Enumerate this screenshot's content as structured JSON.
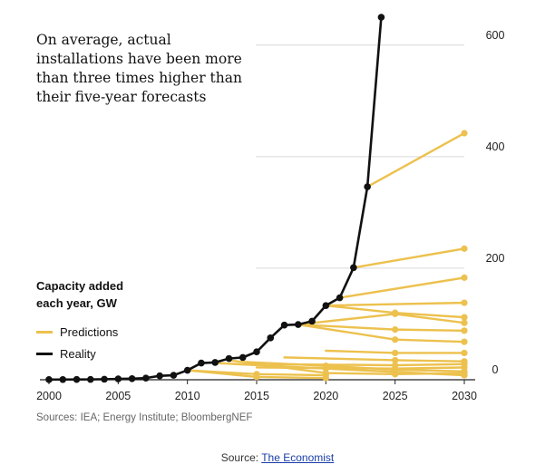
{
  "title": "On average, actual installations have been more than three times higher than their five-year forecasts",
  "unit_label": "Capacity added each year, GW",
  "legend": {
    "predictions": "Predictions",
    "reality": "Reality"
  },
  "sources": "Sources: IEA; Energy Institute; BloombergNEF",
  "credit": {
    "prefix": "Source:",
    "link_text": "The Economist"
  },
  "colors": {
    "reality": "#111111",
    "predictions": "#ecc14e",
    "grid": "#d9d9d9",
    "axis": "#222222"
  },
  "chart_data": {
    "type": "line",
    "title": "On average, actual installations have been more than three times higher than their five-year forecasts",
    "xlabel": "",
    "ylabel": "Capacity added each year, GW",
    "xlim": [
      2000,
      2030
    ],
    "ylim": [
      0,
      650
    ],
    "x_ticks": [
      2000,
      2005,
      2010,
      2015,
      2020,
      2025,
      2030
    ],
    "y_ticks": [
      0,
      200,
      400,
      600
    ],
    "grid": "horizontal",
    "series": [
      {
        "name": "Reality",
        "x": [
          2000,
          2001,
          2002,
          2003,
          2004,
          2005,
          2006,
          2007,
          2008,
          2009,
          2010,
          2011,
          2012,
          2013,
          2014,
          2015,
          2016,
          2017,
          2018,
          2019,
          2020,
          2021,
          2022,
          2023,
          2024
        ],
        "values": [
          0.3,
          0.4,
          0.5,
          0.6,
          1,
          1.5,
          2,
          3,
          7,
          8,
          17,
          30,
          31,
          38,
          40,
          50,
          75,
          98,
          99,
          105,
          133,
          147,
          201,
          346,
          650
        ]
      },
      {
        "name": "Prediction",
        "x": [
          2023,
          2030
        ],
        "values": [
          346,
          442
        ]
      },
      {
        "name": "Prediction",
        "x": [
          2022,
          2030
        ],
        "values": [
          201,
          235
        ]
      },
      {
        "name": "Prediction",
        "x": [
          2021,
          2030
        ],
        "values": [
          147,
          183
        ]
      },
      {
        "name": "Prediction",
        "x": [
          2020,
          2030
        ],
        "values": [
          133,
          138
        ]
      },
      {
        "name": "Prediction",
        "x": [
          2020,
          2025,
          2030
        ],
        "values": [
          133,
          120,
          112
        ]
      },
      {
        "name": "Prediction",
        "x": [
          2018,
          2025,
          2030
        ],
        "values": [
          99,
          118,
          102
        ]
      },
      {
        "name": "Prediction",
        "x": [
          2018,
          2025,
          2030
        ],
        "values": [
          99,
          90,
          88
        ]
      },
      {
        "name": "Prediction",
        "x": [
          2018,
          2025,
          2030
        ],
        "values": [
          99,
          72,
          68
        ]
      },
      {
        "name": "Prediction",
        "x": [
          2020,
          2025,
          2030
        ],
        "values": [
          52,
          48,
          48
        ]
      },
      {
        "name": "Prediction",
        "x": [
          2017,
          2025,
          2030
        ],
        "values": [
          40,
          35,
          33
        ]
      },
      {
        "name": "Prediction",
        "x": [
          2016,
          2025,
          2030
        ],
        "values": [
          28,
          26,
          28
        ]
      },
      {
        "name": "Prediction",
        "x": [
          2015,
          2025,
          2030
        ],
        "values": [
          22,
          20,
          22
        ]
      },
      {
        "name": "Prediction",
        "x": [
          2014,
          2020,
          2025,
          2030
        ],
        "values": [
          32,
          25,
          18,
          15
        ]
      },
      {
        "name": "Prediction",
        "x": [
          2013,
          2020,
          2025,
          2030
        ],
        "values": [
          35,
          12,
          10,
          12
        ]
      },
      {
        "name": "Prediction",
        "x": [
          2012,
          2020,
          2025,
          2030
        ],
        "values": [
          30,
          20,
          14,
          8
        ]
      },
      {
        "name": "Prediction",
        "x": [
          2010,
          2015,
          2020
        ],
        "values": [
          17,
          10,
          8
        ]
      },
      {
        "name": "Prediction",
        "x": [
          2010,
          2015,
          2020
        ],
        "values": [
          17,
          5,
          3
        ]
      }
    ]
  }
}
